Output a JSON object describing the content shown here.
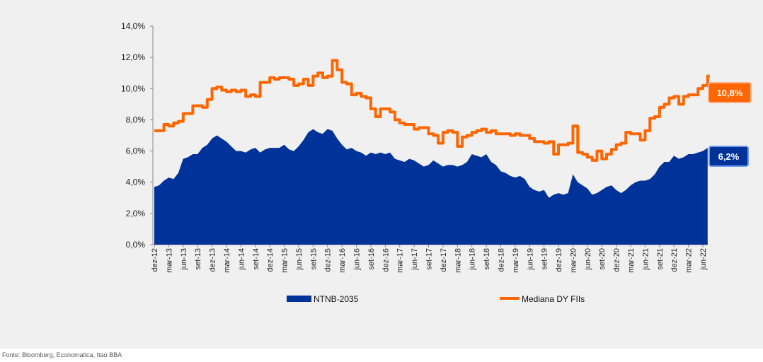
{
  "chart_data": {
    "type": "area+line",
    "ylim": [
      0,
      14
    ],
    "yticks": [
      "0,0%",
      "2,0%",
      "4,0%",
      "6,0%",
      "8,0%",
      "10,0%",
      "12,0%",
      "14,0%"
    ],
    "xticks": [
      "dez-12",
      "mar-13",
      "jun-13",
      "set-13",
      "dez-13",
      "mar-14",
      "jun-14",
      "set-14",
      "dez-14",
      "mar-15",
      "jun-15",
      "set-15",
      "dez-15",
      "mar-16",
      "jun-16",
      "set-16",
      "dez-16",
      "mar-17",
      "jun-17",
      "set-17",
      "dez-17",
      "mar-18",
      "jun-18",
      "set-18",
      "dez-18",
      "mar-19",
      "jun-19",
      "set-19",
      "dez-19",
      "mar-20",
      "jun-20",
      "set-20",
      "dez-20",
      "mar-21",
      "jun-21",
      "set-21",
      "dez-21",
      "mar-22",
      "jun-22"
    ],
    "x": [
      "2012-12",
      "2013-01",
      "2013-02",
      "2013-03",
      "2013-04",
      "2013-05",
      "2013-06",
      "2013-07",
      "2013-08",
      "2013-09",
      "2013-10",
      "2013-11",
      "2013-12",
      "2014-01",
      "2014-02",
      "2014-03",
      "2014-04",
      "2014-05",
      "2014-06",
      "2014-07",
      "2014-08",
      "2014-09",
      "2014-10",
      "2014-11",
      "2014-12",
      "2015-01",
      "2015-02",
      "2015-03",
      "2015-04",
      "2015-05",
      "2015-06",
      "2015-07",
      "2015-08",
      "2015-09",
      "2015-10",
      "2015-11",
      "2015-12",
      "2016-01",
      "2016-02",
      "2016-03",
      "2016-04",
      "2016-05",
      "2016-06",
      "2016-07",
      "2016-08",
      "2016-09",
      "2016-10",
      "2016-11",
      "2016-12",
      "2017-01",
      "2017-02",
      "2017-03",
      "2017-04",
      "2017-05",
      "2017-06",
      "2017-07",
      "2017-08",
      "2017-09",
      "2017-10",
      "2017-11",
      "2017-12",
      "2018-01",
      "2018-02",
      "2018-03",
      "2018-04",
      "2018-05",
      "2018-06",
      "2018-07",
      "2018-08",
      "2018-09",
      "2018-10",
      "2018-11",
      "2018-12",
      "2019-01",
      "2019-02",
      "2019-03",
      "2019-04",
      "2019-05",
      "2019-06",
      "2019-07",
      "2019-08",
      "2019-09",
      "2019-10",
      "2019-11",
      "2019-12",
      "2020-01",
      "2020-02",
      "2020-03",
      "2020-04",
      "2020-05",
      "2020-06",
      "2020-07",
      "2020-08",
      "2020-09",
      "2020-10",
      "2020-11",
      "2020-12",
      "2021-01",
      "2021-02",
      "2021-03",
      "2021-04",
      "2021-05",
      "2021-06",
      "2021-07",
      "2021-08",
      "2021-09",
      "2021-10",
      "2021-11",
      "2021-12",
      "2022-01",
      "2022-02",
      "2022-03",
      "2022-04",
      "2022-05",
      "2022-06",
      "2022-07"
    ],
    "series": [
      {
        "name": "NTNB-2035",
        "type": "area",
        "color": "#003399",
        "values": [
          3.7,
          3.8,
          4.1,
          4.3,
          4.2,
          4.6,
          5.5,
          5.6,
          5.8,
          5.8,
          6.2,
          6.4,
          6.8,
          7.0,
          6.8,
          6.6,
          6.3,
          6.0,
          6.0,
          5.9,
          6.1,
          6.2,
          5.9,
          6.1,
          6.2,
          6.2,
          6.2,
          6.4,
          6.1,
          6.0,
          6.3,
          6.7,
          7.2,
          7.4,
          7.2,
          7.1,
          7.4,
          7.3,
          6.8,
          6.4,
          6.1,
          6.2,
          6.0,
          5.9,
          5.7,
          5.9,
          5.8,
          5.9,
          5.8,
          5.9,
          5.5,
          5.4,
          5.3,
          5.5,
          5.4,
          5.2,
          5.0,
          5.1,
          5.4,
          5.2,
          5.0,
          5.1,
          5.1,
          5.0,
          5.1,
          5.3,
          5.8,
          5.7,
          5.6,
          5.8,
          5.3,
          5.1,
          4.7,
          4.6,
          4.4,
          4.3,
          4.4,
          4.2,
          3.7,
          3.5,
          3.4,
          3.5,
          3.0,
          3.2,
          3.3,
          3.2,
          3.3,
          4.5,
          4.0,
          3.8,
          3.6,
          3.2,
          3.3,
          3.5,
          3.7,
          3.8,
          3.5,
          3.3,
          3.5,
          3.8,
          4.0,
          4.1,
          4.1,
          4.2,
          4.5,
          5.0,
          5.3,
          5.3,
          5.7,
          5.5,
          5.6,
          5.8,
          5.8,
          5.9,
          6.0,
          6.2
        ],
        "last_label": "6,2%"
      },
      {
        "name": "Mediana DY FIIs",
        "type": "step-line",
        "color": "#FF6600",
        "values": [
          7.3,
          7.3,
          7.7,
          7.6,
          7.8,
          7.9,
          8.4,
          8.4,
          8.9,
          8.9,
          8.8,
          9.3,
          10.0,
          10.1,
          9.9,
          9.8,
          9.9,
          9.8,
          9.9,
          9.5,
          9.6,
          9.5,
          10.4,
          10.4,
          10.7,
          10.6,
          10.7,
          10.7,
          10.6,
          10.2,
          10.3,
          10.6,
          10.2,
          10.8,
          11.0,
          10.7,
          10.8,
          11.8,
          11.2,
          10.4,
          10.3,
          9.6,
          9.7,
          9.5,
          9.4,
          8.7,
          8.2,
          8.7,
          8.7,
          8.5,
          8.0,
          7.8,
          7.7,
          7.7,
          7.4,
          7.5,
          7.5,
          7.1,
          7.0,
          6.5,
          7.2,
          7.3,
          7.2,
          6.3,
          6.9,
          7.0,
          7.2,
          7.3,
          7.4,
          7.2,
          7.3,
          7.1,
          7.1,
          7.1,
          7.0,
          7.1,
          7.0,
          7.0,
          6.8,
          6.6,
          6.6,
          6.5,
          6.6,
          5.8,
          6.4,
          6.4,
          6.5,
          7.6,
          5.9,
          5.8,
          5.6,
          5.4,
          6.0,
          5.5,
          5.8,
          6.1,
          6.4,
          6.5,
          7.2,
          7.1,
          7.1,
          6.7,
          7.3,
          8.1,
          8.2,
          8.8,
          9.0,
          9.4,
          9.5,
          9.0,
          9.5,
          9.6,
          9.6,
          10.0,
          10.2,
          10.8
        ],
        "last_label": "10,8%"
      }
    ],
    "legend_position": "bottom",
    "grid": false
  },
  "source": "Fonte: Bloomberg, Economatica, Itaú BBA"
}
